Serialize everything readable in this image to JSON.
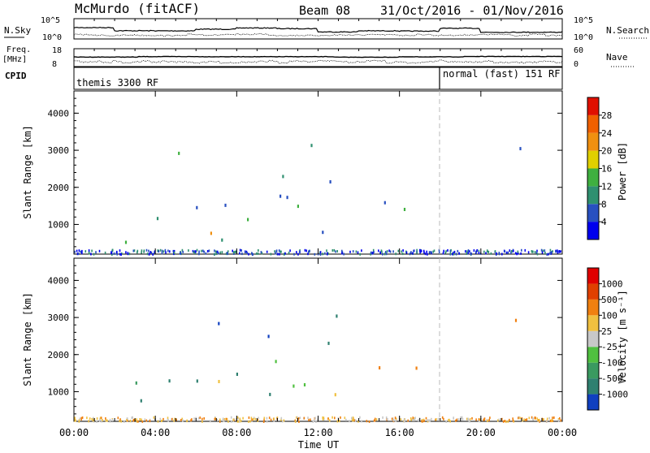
{
  "header": {
    "station": "McMurdo (fitACF)",
    "beam": "Beam 08",
    "dates": "31/Oct/2016 - 01/Nov/2016"
  },
  "top_panels": {
    "nsky_label": "N.Sky",
    "nsky_ticks": [
      "10^5",
      "10^0"
    ],
    "nsearch_label": "N.Search",
    "nsearch_ticks": [
      "10^5",
      "10^0"
    ],
    "freq_label_1": "Freq.",
    "freq_label_2": "[MHz]",
    "freq_ticks": [
      "18",
      "8"
    ],
    "nave_label": "Nave",
    "nave_ticks": [
      "60",
      "0"
    ],
    "cpid_label": "CPID",
    "modes": [
      "themis 3300 RF",
      "normal (fast) 151 RF"
    ]
  },
  "chart_data": [
    {
      "type": "heatmap",
      "name": "power",
      "ylabel": "Slant Range [km]",
      "yticks": [
        1000,
        2000,
        3000,
        4000
      ],
      "ylim": [
        200,
        4600
      ],
      "colorbar_label": "Power [dB]",
      "colorbar_ticks": [
        "28",
        "24",
        "20",
        "16",
        "12",
        "8",
        "4"
      ],
      "colors": [
        "#0000ee",
        "#2850c0",
        "#2f9070",
        "#3fb040",
        "#e0d000",
        "#f09010",
        "#f06000",
        "#e01000"
      ]
    },
    {
      "type": "heatmap",
      "name": "velocity",
      "ylabel": "Slant Range [km]",
      "xlabel": "Time UT",
      "xticks": [
        "00:00",
        "04:00",
        "08:00",
        "12:00",
        "16:00",
        "20:00",
        "00:00"
      ],
      "yticks": [
        1000,
        2000,
        3000,
        4000
      ],
      "ylim": [
        200,
        4600
      ],
      "colorbar_label": "Velocity [m s⁻¹]",
      "colorbar_ticks": [
        "1000",
        "500",
        "100",
        "25",
        "-25",
        "-100",
        "-500",
        "-1000"
      ],
      "colors": [
        "#1040c0",
        "#2f8070",
        "#3a9a60",
        "#50c040",
        "#c8c8c8",
        "#f0c040",
        "#f08010",
        "#e04000",
        "#e00000"
      ]
    }
  ]
}
